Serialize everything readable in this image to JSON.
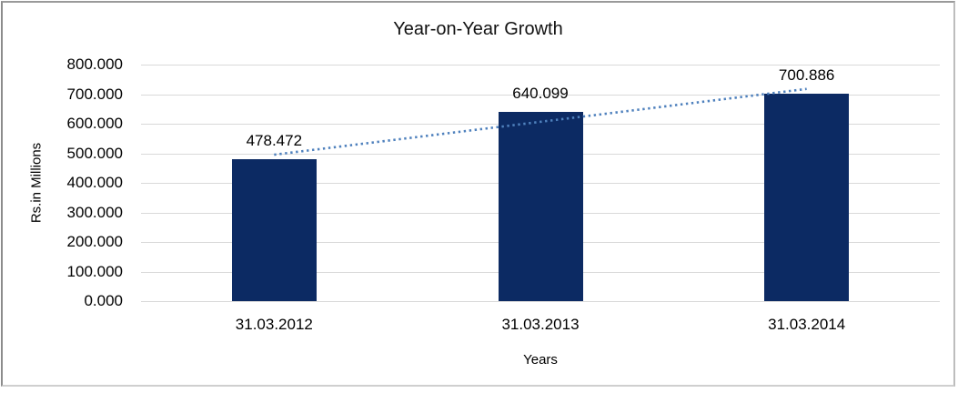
{
  "chart_data": {
    "type": "bar",
    "title": "Year-on-Year Growth",
    "categories": [
      "31.03.2012",
      "31.03.2013",
      "31.03.2014"
    ],
    "values": [
      478.472,
      640.099,
      700.886
    ],
    "data_labels": [
      "478.472",
      "640.099",
      "700.886"
    ],
    "xlabel": "Years",
    "ylabel": "Rs.in Millions",
    "ylim": [
      0,
      800
    ],
    "ytick_step": 100,
    "ytick_labels": [
      "0.000",
      "100.000",
      "200.000",
      "300.000",
      "400.000",
      "500.000",
      "600.000",
      "700.000",
      "800.000"
    ],
    "grid": true,
    "legend": "none",
    "trendline": {
      "kind": "linear",
      "style": "dotted"
    },
    "colors": {
      "bar": "#0c2a63",
      "trendline": "#4f81bd",
      "gridline": "#d9d9d9",
      "text": "#000000",
      "frame_border": "#a6a6a6",
      "background": "#ffffff"
    }
  }
}
